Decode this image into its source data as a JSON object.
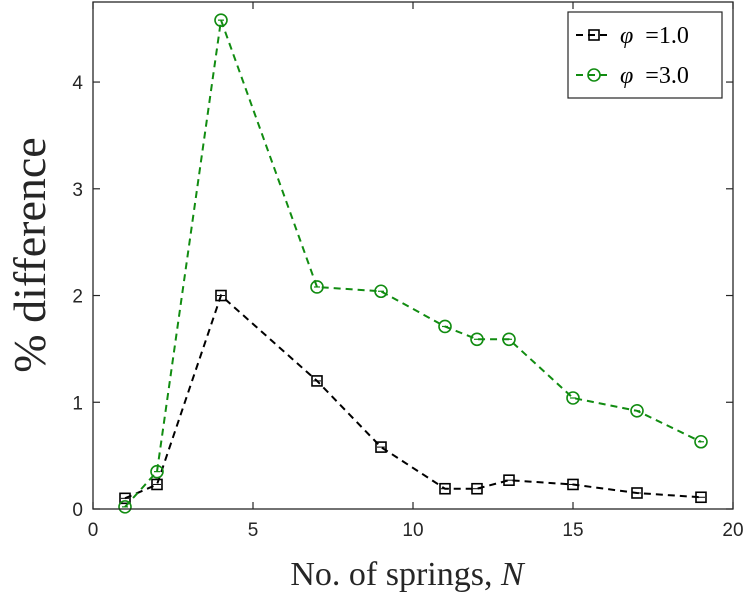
{
  "chart_data": {
    "type": "line",
    "xlabel_text": "No. of springs, ",
    "xlabel_var": "N",
    "ylabel": "% difference",
    "xlim": [
      0,
      20
    ],
    "ylim": [
      0,
      4.75
    ],
    "xticks": [
      0,
      5,
      10,
      15,
      20
    ],
    "yticks": [
      0,
      1,
      2,
      3,
      4
    ],
    "grid": false,
    "legend_position": "top-right",
    "series": [
      {
        "name": "φ =1.0",
        "legend_symbol": "φ",
        "legend_value": "=1.0",
        "color": "#000000",
        "marker": "square",
        "line_style": "dashed",
        "x": [
          1,
          2,
          4,
          7,
          9,
          11,
          12,
          13,
          15,
          17,
          19
        ],
        "y": [
          0.1,
          0.23,
          2.0,
          1.2,
          0.58,
          0.19,
          0.19,
          0.27,
          0.23,
          0.15,
          0.11
        ]
      },
      {
        "name": "φ =3.0",
        "legend_symbol": "φ",
        "legend_value": "=3.0",
        "color": "#118c11",
        "marker": "circle",
        "line_style": "dashed",
        "x": [
          1,
          2,
          4,
          7,
          9,
          11,
          12,
          13,
          15,
          17,
          19
        ],
        "y": [
          0.02,
          0.35,
          4.58,
          2.08,
          2.04,
          1.71,
          1.59,
          1.59,
          1.04,
          0.92,
          0.63
        ]
      }
    ]
  }
}
